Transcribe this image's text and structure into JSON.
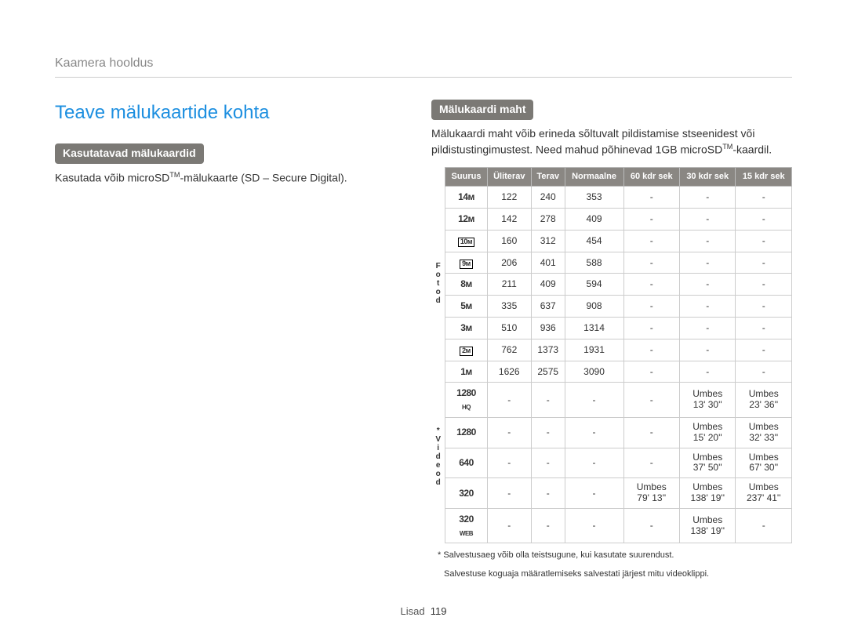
{
  "breadcrumb": "Kaamera hooldus",
  "main_title": "Teave mälukaartide kohta",
  "left": {
    "pill": "Kasutatavad mälukaardid",
    "text_before": "Kasutada võib microSD",
    "text_after": "-mälukaarte (SD – Secure Digital)."
  },
  "right": {
    "pill": "Mälukaardi maht",
    "para_before": "Mälukaardi maht võib erineda sõltuvalt pildistamise stseenidest või pildistustingimustest. Need mahud põhinevad 1GB microSD",
    "para_after": "-kaardil."
  },
  "table": {
    "headers": [
      "Suurus",
      "Üliterav",
      "Terav",
      "Normaalne",
      "60 kdr sek",
      "30 kdr sek",
      "15 kdr sek"
    ],
    "section_photo_label": "Fotod",
    "section_video_label": "* Videod",
    "photo_rows": [
      {
        "size": "14ᴍ",
        "boxed": false,
        "cells": [
          "122",
          "240",
          "353",
          "-",
          "-",
          "-"
        ]
      },
      {
        "size": "12ᴍ",
        "boxed": false,
        "cells": [
          "142",
          "278",
          "409",
          "-",
          "-",
          "-"
        ]
      },
      {
        "size": "10ᴍ",
        "boxed": true,
        "cells": [
          "160",
          "312",
          "454",
          "-",
          "-",
          "-"
        ]
      },
      {
        "size": "9ᴍ",
        "boxed": true,
        "cells": [
          "206",
          "401",
          "588",
          "-",
          "-",
          "-"
        ]
      },
      {
        "size": "8ᴍ",
        "boxed": false,
        "cells": [
          "211",
          "409",
          "594",
          "-",
          "-",
          "-"
        ]
      },
      {
        "size": "5ᴍ",
        "boxed": false,
        "cells": [
          "335",
          "637",
          "908",
          "-",
          "-",
          "-"
        ]
      },
      {
        "size": "3ᴍ",
        "boxed": false,
        "cells": [
          "510",
          "936",
          "1314",
          "-",
          "-",
          "-"
        ]
      },
      {
        "size": "2ᴍ",
        "boxed": true,
        "cells": [
          "762",
          "1373",
          "1931",
          "-",
          "-",
          "-"
        ]
      },
      {
        "size": "1ᴍ",
        "boxed": false,
        "cells": [
          "1626",
          "2575",
          "3090",
          "-",
          "-",
          "-"
        ]
      }
    ],
    "video_rows": [
      {
        "size": "1280 HQ",
        "cells": [
          "-",
          "-",
          "-",
          "-",
          "Umbes 13' 30''",
          "Umbes 23' 36''"
        ]
      },
      {
        "size": "1280",
        "cells": [
          "-",
          "-",
          "-",
          "-",
          "Umbes 15' 20''",
          "Umbes 32' 33''"
        ]
      },
      {
        "size": "640",
        "cells": [
          "-",
          "-",
          "-",
          "-",
          "Umbes 37' 50''",
          "Umbes 67' 30''"
        ]
      },
      {
        "size": "320",
        "cells": [
          "-",
          "-",
          "-",
          "Umbes 79' 13''",
          "Umbes 138' 19''",
          "Umbes 237' 41''"
        ]
      },
      {
        "size": "320 WEB",
        "cells": [
          "-",
          "-",
          "-",
          "-",
          "Umbes 138' 19''",
          "-"
        ]
      }
    ]
  },
  "footnote1": "* Salvestusaeg võib olla teistsugune, kui kasutate suurendust.",
  "footnote2": "Salvestuse koguaja määratlemiseks salvestati järjest mitu videoklippi.",
  "footer_label": "Lisad",
  "footer_page": "119"
}
